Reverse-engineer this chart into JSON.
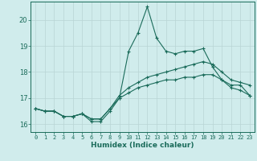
{
  "xlabel": "Humidex (Indice chaleur)",
  "bg_color": "#d0ecec",
  "grid_color": "#b8d4d4",
  "line_color": "#1a6b5a",
  "xlim": [
    -0.5,
    23.5
  ],
  "ylim": [
    15.7,
    20.7
  ],
  "yticks": [
    16,
    17,
    18,
    19,
    20
  ],
  "xticks": [
    0,
    1,
    2,
    3,
    4,
    5,
    6,
    7,
    8,
    9,
    10,
    11,
    12,
    13,
    14,
    15,
    16,
    17,
    18,
    19,
    20,
    21,
    22,
    23
  ],
  "series": [
    [
      16.6,
      16.5,
      16.5,
      16.3,
      16.3,
      16.4,
      16.1,
      16.1,
      16.5,
      17.0,
      18.8,
      19.5,
      20.5,
      19.3,
      18.8,
      18.7,
      18.8,
      18.8,
      18.9,
      18.2,
      17.7,
      17.5,
      17.5,
      17.1
    ],
    [
      16.6,
      16.5,
      16.5,
      16.3,
      16.3,
      16.4,
      16.2,
      16.2,
      16.6,
      17.1,
      17.4,
      17.6,
      17.8,
      17.9,
      18.0,
      18.1,
      18.2,
      18.3,
      18.4,
      18.3,
      18.0,
      17.7,
      17.6,
      17.5
    ],
    [
      16.6,
      16.5,
      16.5,
      16.3,
      16.3,
      16.4,
      16.2,
      16.2,
      16.6,
      17.0,
      17.2,
      17.4,
      17.5,
      17.6,
      17.7,
      17.7,
      17.8,
      17.8,
      17.9,
      17.9,
      17.7,
      17.4,
      17.3,
      17.1
    ]
  ]
}
